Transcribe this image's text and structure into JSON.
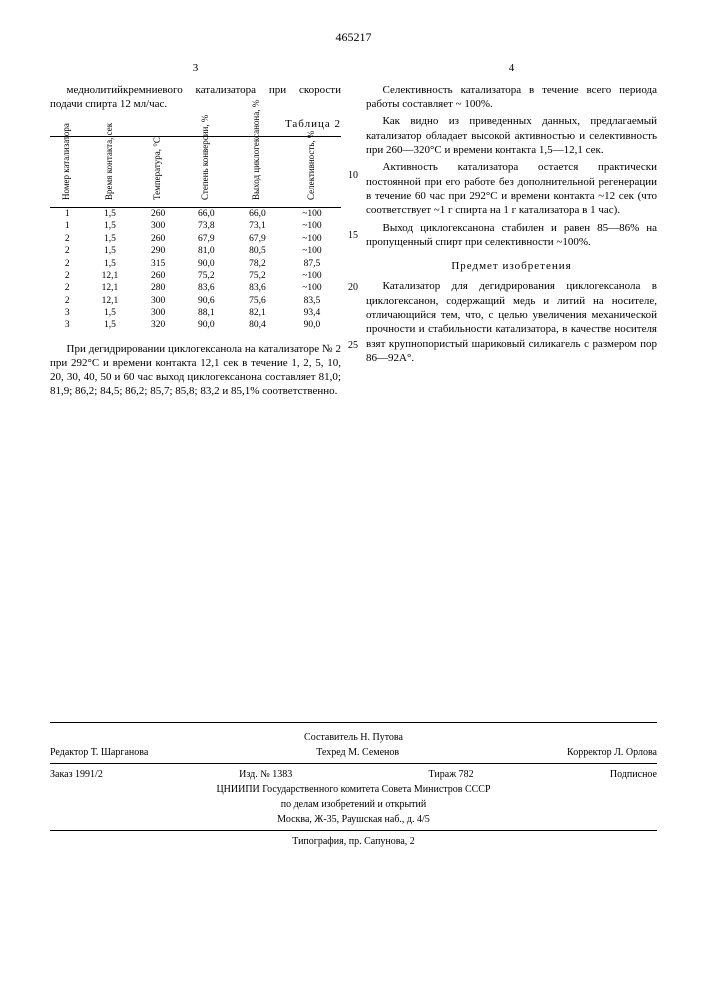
{
  "docNumber": "465217",
  "leftColNum": "3",
  "rightColNum": "4",
  "left": {
    "intro": "меднолитийкремниевого катализатора при скорости подачи спирта 12 мл/час.",
    "tableTitle": "Таблица 2",
    "headers": [
      "Номер катализатора",
      "Время контакта, сек",
      "Температура, °C",
      "Степень конверсии, %",
      "Выход циклогексанона, %",
      "Селективность, %"
    ],
    "rows": [
      [
        "1",
        "1,5",
        "260",
        "66,0",
        "66,0",
        "~100"
      ],
      [
        "1",
        "1,5",
        "300",
        "73,8",
        "73,1",
        "~100"
      ],
      [
        "2",
        "1,5",
        "260",
        "67,9",
        "67,9",
        "~100"
      ],
      [
        "2",
        "1,5",
        "290",
        "81,0",
        "80,5",
        "~100"
      ],
      [
        "2",
        "1,5",
        "315",
        "90,0",
        "78,2",
        "87,5"
      ],
      [
        "2",
        "12,1",
        "260",
        "75,2",
        "75,2",
        "~100"
      ],
      [
        "2",
        "12,1",
        "280",
        "83,6",
        "83,6",
        "~100"
      ],
      [
        "2",
        "12,1",
        "300",
        "90,6",
        "75,6",
        "83,5"
      ],
      [
        "3",
        "1,5",
        "300",
        "88,1",
        "82,1",
        "93,4"
      ],
      [
        "3",
        "1,5",
        "320",
        "90,0",
        "80,4",
        "90,0"
      ]
    ],
    "afterTable": "При дегидрировании циклогексанола на катализаторе № 2 при 292°C и времени контакта 12,1 сек в течение 1, 2, 5, 10, 20, 30, 40, 50 и 60 час выход циклогексанона составляет 81,0; 81,9; 86,2; 84,5; 86,2; 85,7; 85,8; 83,2 и 85,1% соответственно."
  },
  "right": {
    "p1": "Селективность катализатора в течение всего периода работы составляет ~ 100%.",
    "p2": "Как видно из приведенных данных, предлагаемый катализатор обладает высокой активностью и селективность при 260—320°C и времени контакта 1,5—12,1 сек.",
    "p3": "Активность катализатора остается практически постоянной при его работе без дополнительной регенерации в течение 60 час при 292°C и времени контакта ~12 сек (что соответствует ~1 г спирта на 1 г катализатора в 1 час).",
    "p4": "Выход циклогексанона стабилен и равен 85—86% на пропущенный спирт при селективности ~100%.",
    "claimHeader": "Предмет изобретения",
    "claim": "Катализатор для дегидрирования циклогексанола в циклогексанон, содержащий медь и литий на носителе, отличающийся тем, что, с целью увеличения механической прочности и стабильности катализатора, в качестве носителя взят крупнопористый шариковый силикагель с размером пор 86—92А°.",
    "ln10": "10",
    "ln15": "15",
    "ln20": "20",
    "ln25": "25"
  },
  "footer": {
    "compiler": "Составитель Н. Путова",
    "editor": "Редактор Т. Шарганова",
    "tech": "Техред М. Семенов",
    "corrector": "Корректор Л. Орлова",
    "order": "Заказ 1991/2",
    "izd": "Изд. № 1383",
    "tirazh": "Тираж 782",
    "sub": "Подписное",
    "org1": "ЦНИИПИ Государственного комитета Совета Министров СССР",
    "org2": "по делам изобретений и открытий",
    "addr": "Москва, Ж-35, Раушская наб., д. 4/5",
    "print": "Типография, пр. Сапунова, 2"
  }
}
